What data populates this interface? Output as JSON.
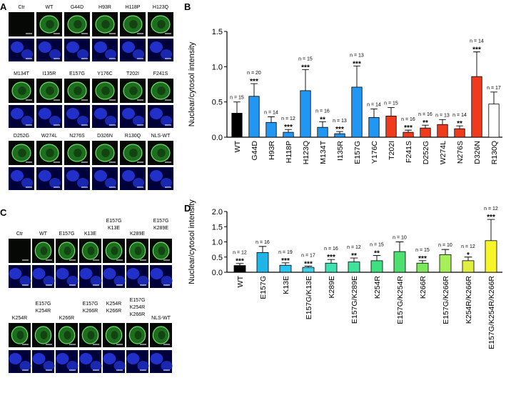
{
  "figure": {
    "panels": [
      {
        "letter": "A",
        "rows": [
          [
            [
              "Ctr"
            ],
            [
              "WT"
            ],
            [
              "G44D"
            ],
            [
              "H93R"
            ],
            [
              "H118P"
            ],
            [
              "H123Q"
            ]
          ],
          [
            [
              "M134T"
            ],
            [
              "I135R"
            ],
            [
              "E157G"
            ],
            [
              "Y176C"
            ],
            [
              "T202I"
            ],
            [
              "F241S"
            ]
          ],
          [
            [
              "D252G"
            ],
            [
              "W274L"
            ],
            [
              "N276S"
            ],
            [
              "D326N"
            ],
            [
              "R130Q"
            ],
            [
              "NLS-WT"
            ]
          ]
        ]
      },
      {
        "letter": "C",
        "rows": [
          [
            [
              "Ctr"
            ],
            [
              "WT"
            ],
            [
              "E157G"
            ],
            [
              "K13E"
            ],
            [
              "E157G",
              "K13E"
            ],
            [
              "K289E"
            ],
            [
              "E157G",
              "K289E"
            ]
          ],
          [
            [
              "K254R"
            ],
            [
              "E157G",
              "K254R"
            ],
            [
              "K266R"
            ],
            [
              "E157G",
              "K266R"
            ],
            [
              "K254R",
              "K266R"
            ],
            [
              "E157G",
              "K254R",
              "K266R"
            ],
            [
              "NLS-WT"
            ]
          ]
        ]
      }
    ]
  },
  "chart_data": [
    {
      "type": "bar",
      "panel": "B",
      "y_label": "Nuclear/cytosol intensity",
      "categories": [
        "WT",
        "G44D",
        "H93R",
        "H118P",
        "H123Q",
        "M134T",
        "I135R",
        "E157G",
        "Y176C",
        "T202I",
        "F241S",
        "D252G",
        "W274L",
        "N276S",
        "D326N",
        "R130Q"
      ],
      "values": [
        0.34,
        0.58,
        0.21,
        0.07,
        0.66,
        0.14,
        0.05,
        0.71,
        0.28,
        0.3,
        0.07,
        0.13,
        0.18,
        0.12,
        0.86,
        0.47
      ],
      "errors": [
        0.16,
        0.18,
        0.08,
        0.04,
        0.3,
        0.08,
        0.03,
        0.3,
        0.12,
        0.12,
        0.03,
        0.04,
        0.07,
        0.04,
        0.35,
        0.17
      ],
      "colors": [
        "#000000",
        "#2196f3",
        "#2196f3",
        "#2196f3",
        "#2196f3",
        "#2196f3",
        "#2196f3",
        "#2196f3",
        "#2196f3",
        "#f03a1e",
        "#f03a1e",
        "#f03a1e",
        "#f03a1e",
        "#f03a1e",
        "#f03a1e",
        "#ffffff"
      ],
      "n_labels": [
        "n = 15",
        "n = 20",
        "n = 14",
        "n = 12",
        "n = 15",
        "n = 16",
        "n = 13",
        "n = 13",
        "n = 14",
        "n = 15",
        "n = 16",
        "n = 16",
        "n = 13",
        "n = 14",
        "n = 14",
        "n = 17"
      ],
      "significance": [
        null,
        "***",
        null,
        "***",
        "***",
        "**",
        "***",
        "***",
        null,
        null,
        "***",
        "**",
        null,
        "**",
        "***",
        null
      ],
      "ylim": [
        0,
        1.5
      ],
      "yticks": [
        {
          "value": 0,
          "label": "0.0"
        },
        0.5,
        {
          "value": 1,
          "label": "1.0"
        },
        1.5
      ]
    },
    {
      "type": "bar",
      "panel": "D",
      "y_label": "Nuclear/cytosol intensity",
      "categories": [
        "WT",
        "E157G",
        "K13E",
        "E157G/K13E",
        "K289E",
        "E157G/K289E",
        "K254R",
        "E157G/K254R",
        "K266R",
        "E157G/K266R",
        "K254R/K266R",
        "E157G/K254R/K266R"
      ],
      "values": [
        0.22,
        0.65,
        0.23,
        0.16,
        0.3,
        0.34,
        0.38,
        0.68,
        0.3,
        0.58,
        0.38,
        1.04
      ],
      "errors": [
        0.07,
        0.2,
        0.08,
        0.04,
        0.12,
        0.13,
        0.17,
        0.32,
        0.08,
        0.17,
        0.12,
        0.7
      ],
      "colors": [
        "#000000",
        "#1fb5e8",
        "#29c4f0",
        "#40d0e8",
        "#3ee0b0",
        "#3fe39c",
        "#3fe07f",
        "#4de070",
        "#7ee85c",
        "#a6ee5a",
        "#e0f040",
        "#f6f52a"
      ],
      "n_labels": [
        "n = 12",
        "n = 16",
        "n = 19",
        "n = 17",
        "n = 16",
        "n = 12",
        "n = 15",
        "n = 10",
        "n = 15",
        "n = 10",
        "n = 12",
        "n = 12"
      ],
      "significance": [
        "***",
        null,
        "***",
        "***",
        "***",
        "**",
        "**",
        null,
        "***",
        null,
        "*",
        "***"
      ],
      "ylim": [
        0,
        2
      ],
      "yticks": [
        {
          "value": 0,
          "label": "0.0"
        },
        0.5,
        {
          "value": 1,
          "label": "1.0"
        },
        1.5,
        {
          "value": 2,
          "label": "2.0"
        }
      ]
    }
  ]
}
